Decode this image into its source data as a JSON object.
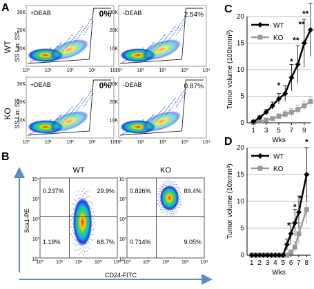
{
  "panel_letters": {
    "A": "A",
    "B": "B",
    "C": "C",
    "D": "D"
  },
  "panel_a": {
    "row_labels": [
      "WT",
      "KO"
    ],
    "y_axis_label": "SS Lin: SS",
    "y_ticks": [
      "30K",
      "20K",
      "10K"
    ],
    "x_ticks": [
      "10⁰",
      "10¹",
      "10²",
      "10³",
      "10⁴"
    ],
    "plots": [
      {
        "label": "+DEAB",
        "percent": "0%"
      },
      {
        "label": "-DEAB",
        "percent": "2.54%"
      },
      {
        "label": "+DEAB",
        "percent": "0%"
      },
      {
        "label": "-DEAB",
        "percent": "0.87%"
      }
    ]
  },
  "panel_b": {
    "titles": [
      "WT",
      "KO"
    ],
    "y_axis_label": "Sca1-PE",
    "x_axis_label": "CD24-FITC",
    "y_ticks": [
      "10⁴",
      "10³",
      "10²",
      "10¹",
      "10⁰"
    ],
    "x_ticks": [
      "10⁰",
      "10¹",
      "10²",
      "10³",
      "10⁴"
    ],
    "quadrants": [
      {
        "tl": "0.237%",
        "tr": "29.9%",
        "bl": "1.18%",
        "br": "68.7%"
      },
      {
        "tl": "0.826%",
        "tr": "89.4%",
        "bl": "0.714%",
        "br": "9.05%"
      }
    ]
  },
  "chart_data": [
    {
      "type": "line",
      "panel": "C",
      "ylabel": "Tumor volume (100xmm³)",
      "xlabel": "Wks",
      "ylim": [
        0,
        20
      ],
      "yticks": [
        0,
        5,
        10,
        15,
        20
      ],
      "xticks": [
        1,
        3,
        5,
        7,
        9
      ],
      "xlim": [
        0,
        10
      ],
      "legend": "top-left",
      "series": [
        {
          "name": "WT",
          "color": "#000000",
          "marker": "diamond",
          "x": [
            1,
            2,
            3,
            4,
            5,
            6,
            7,
            8,
            9,
            10
          ],
          "y": [
            0.2,
            1,
            2,
            3.2,
            4.5,
            5.5,
            8.5,
            11,
            15,
            17.5
          ],
          "err": [
            0.2,
            0.3,
            0.5,
            0.7,
            1,
            1.5,
            2.5,
            3.5,
            4.5,
            5
          ]
        },
        {
          "name": "KO",
          "color": "#999999",
          "marker": "square",
          "x": [
            1,
            2,
            3,
            4,
            5,
            6,
            7,
            8,
            9,
            10
          ],
          "y": [
            0.1,
            0.3,
            0.5,
            0.8,
            1.2,
            1.6,
            2,
            2.5,
            3.2,
            4
          ],
          "err": [
            0.1,
            0.2,
            0.3,
            0.4,
            0.5,
            0.6,
            0.7,
            0.8,
            0.9,
            1
          ]
        }
      ],
      "annotations": [
        {
          "x": 5,
          "y": 7,
          "text": "*"
        },
        {
          "x": 7,
          "y": 11.5,
          "text": "*"
        },
        {
          "x": 7.7,
          "y": 15.5,
          "text": "**"
        },
        {
          "x": 8.6,
          "y": 18.5,
          "text": "**"
        },
        {
          "x": 9.2,
          "y": 20.5,
          "text": "**"
        }
      ]
    },
    {
      "type": "line",
      "panel": "D",
      "ylabel": "Tumor volume (10xmm³)",
      "xlabel": "Wks",
      "ylim": [
        0,
        20
      ],
      "yticks": [
        0,
        5,
        10,
        15,
        20
      ],
      "xticks": [
        1,
        2,
        3,
        4,
        5,
        6,
        7,
        8
      ],
      "xlim": [
        0.4,
        8.5
      ],
      "legend": "top-left",
      "series": [
        {
          "name": "WT",
          "color": "#000000",
          "marker": "diamond",
          "x": [
            1,
            1.5,
            2,
            2.5,
            3,
            3.5,
            4,
            4.5,
            5,
            5.5,
            6,
            6.5,
            7,
            8
          ],
          "y": [
            0,
            0,
            0,
            0,
            0,
            0,
            0,
            0,
            0,
            2,
            4,
            6,
            8,
            15
          ],
          "err": [
            0,
            0,
            0,
            0,
            0,
            0,
            0,
            0,
            0,
            1,
            2,
            2.5,
            3,
            5
          ]
        },
        {
          "name": "KO",
          "color": "#999999",
          "marker": "square",
          "x": [
            1,
            1.5,
            2,
            2.5,
            3,
            3.5,
            4,
            4.5,
            5,
            5.5,
            6,
            6.5,
            7,
            8
          ],
          "y": [
            0,
            0,
            0,
            0,
            0,
            0,
            0,
            0,
            0,
            0,
            0.5,
            1.5,
            4,
            8.5
          ],
          "err": [
            0,
            0,
            0,
            0,
            0,
            0,
            0,
            0,
            0,
            0,
            0.5,
            1,
            2,
            2.5
          ]
        }
      ],
      "annotations": [
        {
          "x": 5.7,
          "y": 5.5,
          "text": "*"
        },
        {
          "x": 6.5,
          "y": 9,
          "text": "*"
        },
        {
          "x": 7.2,
          "y": 10.5,
          "text": "*"
        },
        {
          "x": 8,
          "y": 21,
          "text": "*"
        }
      ]
    }
  ]
}
